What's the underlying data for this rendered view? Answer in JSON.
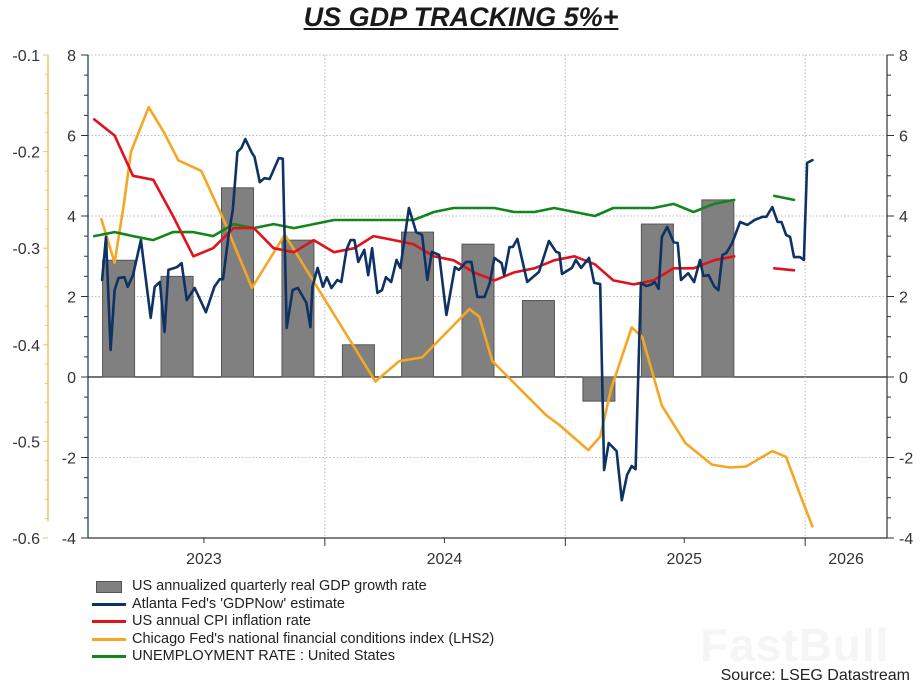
{
  "title": "US GDP TRACKING 5%+",
  "source": "Source: LSEG Datastream",
  "watermark": "FastBull",
  "legend": [
    {
      "label": "US annualized quarterly real GDP growth rate",
      "kind": "bar",
      "color": "#808080"
    },
    {
      "label": "Atlanta Fed's 'GDPNow' estimate",
      "kind": "line",
      "color": "#0d3263"
    },
    {
      "label": "US annual CPI inflation rate",
      "kind": "line",
      "color": "#e0121b"
    },
    {
      "label": "Chicago Fed's national financial conditions index (LHS2)",
      "kind": "line",
      "color": "#f5a623"
    },
    {
      "label": "UNEMPLOYMENT RATE : United States",
      "kind": "line",
      "color": "#12861a"
    }
  ],
  "chart_data": {
    "type": "bar+line",
    "title": "US GDP TRACKING 5%+",
    "x_ticks": [
      "2023",
      "2024",
      "2025",
      "2026"
    ],
    "xlim": [
      "2023-01-01",
      "2026-05-01"
    ],
    "y_left_primary": {
      "ylim": [
        -4,
        8
      ],
      "ticks": [
        8,
        6,
        4,
        2,
        0,
        -2,
        -4
      ]
    },
    "y_left_secondary": {
      "ylim": [
        -0.6,
        -0.1
      ],
      "ticks": [
        -0.1,
        -0.2,
        -0.3,
        -0.4,
        -0.5,
        -0.6
      ],
      "color": "#f5a623"
    },
    "y_right": {
      "ylim": [
        -4,
        8
      ],
      "ticks": [
        8,
        6,
        4,
        2,
        0,
        -2,
        -4
      ]
    },
    "grid": true,
    "legend_position": "bottom-left",
    "bars": {
      "name": "US annualized quarterly real GDP growth rate",
      "categories": [
        "2023-Q1",
        "2023-Q2",
        "2023-Q3",
        "2023-Q4",
        "2024-Q1",
        "2024-Q2",
        "2024-Q3",
        "2024-Q4",
        "2025-Q1",
        "2025-Q2",
        "2025-Q3"
      ],
      "values": [
        2.9,
        2.5,
        4.7,
        3.4,
        0.8,
        3.6,
        3.3,
        1.9,
        -0.6,
        3.8,
        4.4
      ]
    },
    "series": [
      {
        "name": "Atlanta Fed's 'GDPNow' estimate",
        "axis": "primary",
        "color": "#0d3263",
        "x": [
          "2023-01-27",
          "2023-02-02",
          "2023-02-09",
          "2023-02-15",
          "2023-02-21",
          "2023-03-02",
          "2023-03-07",
          "2023-03-15",
          "2023-03-27",
          "2023-04-11",
          "2023-04-17",
          "2023-04-25",
          "2023-05-02",
          "2023-05-08",
          "2023-05-21",
          "2023-05-28",
          "2023-06-05",
          "2023-06-17",
          "2023-07-04",
          "2023-07-17",
          "2023-07-25",
          "2023-07-30",
          "2023-08-08",
          "2023-08-14",
          "2023-08-21",
          "2023-08-27",
          "2023-09-02",
          "2023-09-12",
          "2023-09-16",
          "2023-09-24",
          "2023-10-01",
          "2023-10-09",
          "2023-10-23",
          "2023-10-29",
          "2023-11-04",
          "2023-11-13",
          "2023-11-21",
          "2023-12-04",
          "2023-12-10",
          "2023-12-13",
          "2023-12-21",
          "2023-12-29",
          "2024-01-04",
          "2024-01-11",
          "2024-01-20",
          "2024-01-26",
          "2024-02-03",
          "2024-02-09",
          "2024-02-15",
          "2024-02-21",
          "2024-03-01",
          "2024-03-07",
          "2024-03-13",
          "2024-03-21",
          "2024-03-28",
          "2024-04-03",
          "2024-04-11",
          "2024-04-19",
          "2024-04-25",
          "2024-05-08",
          "2024-05-19",
          "2024-05-28",
          "2024-06-05",
          "2024-06-12",
          "2024-06-23",
          "2024-07-04",
          "2024-07-17",
          "2024-07-23",
          "2024-08-03",
          "2024-08-11",
          "2024-08-20",
          "2024-08-31",
          "2024-09-08",
          "2024-09-15",
          "2024-09-26",
          "2024-09-30",
          "2024-10-08",
          "2024-10-13",
          "2024-10-20",
          "2024-11-04",
          "2024-11-22",
          "2024-12-07",
          "2024-12-18",
          "2024-12-23",
          "2024-12-27",
          "2025-01-11",
          "2025-01-17",
          "2025-01-25",
          "2025-02-06",
          "2025-02-14",
          "2025-02-23",
          "2025-03-01",
          "2025-03-08",
          "2025-03-20",
          "2025-03-28",
          "2025-04-05",
          "2025-04-12",
          "2025-04-18",
          "2025-04-26",
          "2025-05-04",
          "2025-05-11",
          "2025-05-17",
          "2025-05-23",
          "2025-05-28",
          "2025-06-05",
          "2025-06-15",
          "2025-06-21",
          "2025-06-26",
          "2025-07-07",
          "2025-07-16",
          "2025-07-25",
          "2025-07-30",
          "2025-08-07",
          "2025-08-16",
          "2025-08-22",
          "2025-08-28",
          "2025-09-03",
          "2025-09-12",
          "2025-09-24",
          "2025-10-05",
          "2025-10-16",
          "2025-10-28",
          "2025-11-03",
          "2025-11-12",
          "2025-11-20",
          "2025-11-26",
          "2025-12-03",
          "2025-12-09",
          "2025-12-15",
          "2025-12-24",
          "2025-12-30",
          "2026-01-04",
          "2026-01-12"
        ],
        "values": [
          2.41,
          3.48,
          0.67,
          2.16,
          2.46,
          2.48,
          2.24,
          2.53,
          3.4,
          1.47,
          2.24,
          2.36,
          1.12,
          2.66,
          2.73,
          2.83,
          1.91,
          2.21,
          1.61,
          2.24,
          2.43,
          2.43,
          3.58,
          4.15,
          5.59,
          5.69,
          5.91,
          5.57,
          5.47,
          4.84,
          4.94,
          4.92,
          5.44,
          5.42,
          1.22,
          2.16,
          2.21,
          1.84,
          1.24,
          2.24,
          2.71,
          2.24,
          2.48,
          2.21,
          2.41,
          2.36,
          3.16,
          3.4,
          3.4,
          2.86,
          3.16,
          2.53,
          3.2,
          2.09,
          2.16,
          2.48,
          2.36,
          2.91,
          2.71,
          4.2,
          3.6,
          3.53,
          2.41,
          3.11,
          3.03,
          1.54,
          2.73,
          2.66,
          2.86,
          2.86,
          1.99,
          1.99,
          2.34,
          2.96,
          2.83,
          2.53,
          3.23,
          3.23,
          3.43,
          2.36,
          2.61,
          3.38,
          3.11,
          3.08,
          2.56,
          2.71,
          2.91,
          2.71,
          2.96,
          2.34,
          2.31,
          -2.31,
          -1.64,
          -1.84,
          -3.06,
          -2.43,
          -2.21,
          -2.29,
          2.34,
          2.26,
          2.29,
          2.36,
          2.19,
          3.48,
          3.73,
          3.35,
          3.33,
          2.41,
          2.58,
          2.36,
          2.91,
          2.51,
          2.53,
          2.24,
          2.16,
          3.03,
          3.08,
          3.33,
          3.85,
          3.78,
          3.9,
          3.98,
          3.98,
          4.22,
          3.85,
          3.85,
          3.53,
          3.48,
          2.98,
          2.98,
          2.91,
          5.32,
          5.39
        ]
      },
      {
        "name": "US annual CPI inflation rate",
        "axis": "primary",
        "color": "#e0121b",
        "x": [
          "2023-01-15",
          "2023-02-15",
          "2023-03-15",
          "2023-04-15",
          "2023-05-15",
          "2023-06-15",
          "2023-07-15",
          "2023-08-15",
          "2023-09-15",
          "2023-10-15",
          "2023-11-15",
          "2023-12-15",
          "2024-01-15",
          "2024-02-15",
          "2024-03-15",
          "2024-04-15",
          "2024-05-15",
          "2024-06-15",
          "2024-07-15",
          "2024-08-15",
          "2024-09-15",
          "2024-10-15",
          "2024-11-15",
          "2024-12-15",
          "2025-01-15",
          "2025-02-15",
          "2025-03-15",
          "2025-04-15",
          "2025-05-15",
          "2025-06-15",
          "2025-07-15",
          "2025-08-15",
          "2025-09-15",
          "2025-10-15",
          "2025-11-15",
          "2025-12-15"
        ],
        "values": [
          6.4,
          6.0,
          5.0,
          4.9,
          4.0,
          3.0,
          3.2,
          3.7,
          3.7,
          3.2,
          3.1,
          3.4,
          3.1,
          3.2,
          3.5,
          3.4,
          3.3,
          3.0,
          2.9,
          2.6,
          2.4,
          2.6,
          2.7,
          2.9,
          3.0,
          2.8,
          2.4,
          2.3,
          2.4,
          2.7,
          2.7,
          2.9,
          3.0,
          null,
          2.7,
          2.65
        ]
      },
      {
        "name": "Chicago Fed's national financial conditions index (LHS2)",
        "axis": "secondary",
        "color": "#f5a623",
        "x": [
          "2023-01-26",
          "2023-02-15",
          "2023-03-01",
          "2023-03-12",
          "2023-04-08",
          "2023-05-01",
          "2023-05-23",
          "2023-06-27",
          "2023-08-01",
          "2023-09-12",
          "2023-11-01",
          "2024-03-18",
          "2024-04-23",
          "2024-05-28",
          "2024-08-08",
          "2024-08-23",
          "2024-09-12",
          "2024-10-23",
          "2024-12-03",
          "2024-12-23",
          "2025-02-05",
          "2025-02-23",
          "2025-03-12",
          "2025-04-12",
          "2025-04-28",
          "2025-05-28",
          "2025-07-03",
          "2025-08-12",
          "2025-09-08",
          "2025-10-03",
          "2025-11-12",
          "2025-12-03",
          "2025-12-23",
          "2026-01-12"
        ],
        "values": [
          -0.27,
          -0.315,
          -0.255,
          -0.2,
          -0.154,
          -0.18,
          -0.209,
          -0.22,
          -0.272,
          -0.341,
          -0.286,
          -0.438,
          -0.417,
          -0.413,
          -0.363,
          -0.371,
          -0.417,
          -0.445,
          -0.473,
          -0.483,
          -0.509,
          -0.495,
          -0.445,
          -0.382,
          -0.392,
          -0.463,
          -0.502,
          -0.524,
          -0.527,
          -0.526,
          -0.51,
          -0.516,
          -0.553,
          -0.588
        ]
      },
      {
        "name": "UNEMPLOYMENT RATE : United States",
        "axis": "primary",
        "color": "#12861a",
        "x": [
          "2023-01-15",
          "2023-02-15",
          "2023-03-15",
          "2023-04-15",
          "2023-05-15",
          "2023-06-15",
          "2023-07-15",
          "2023-08-15",
          "2023-09-15",
          "2023-10-15",
          "2023-11-15",
          "2023-12-15",
          "2024-01-15",
          "2024-02-15",
          "2024-03-15",
          "2024-04-15",
          "2024-05-15",
          "2024-06-15",
          "2024-07-15",
          "2024-08-15",
          "2024-09-15",
          "2024-10-15",
          "2024-11-15",
          "2024-12-15",
          "2025-01-15",
          "2025-02-15",
          "2025-03-15",
          "2025-04-15",
          "2025-05-15",
          "2025-06-15",
          "2025-07-15",
          "2025-08-15",
          "2025-09-15",
          "2025-10-15",
          "2025-11-15",
          "2025-12-15"
        ],
        "values": [
          3.5,
          3.6,
          3.5,
          3.4,
          3.6,
          3.6,
          3.5,
          3.8,
          3.7,
          3.8,
          3.7,
          3.8,
          3.9,
          3.9,
          3.9,
          3.9,
          3.9,
          4.1,
          4.2,
          4.2,
          4.2,
          4.1,
          4.1,
          4.2,
          4.1,
          4.0,
          4.2,
          4.2,
          4.2,
          4.3,
          4.1,
          4.3,
          4.4,
          null,
          4.5,
          4.4
        ]
      }
    ]
  }
}
